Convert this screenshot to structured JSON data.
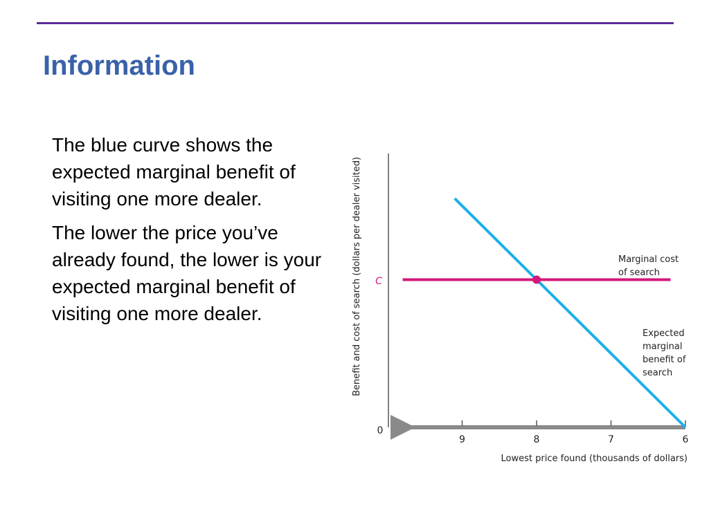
{
  "slide": {
    "title": "Information",
    "paragraphs": [
      "The blue curve shows the expected marginal benefit of visiting one more dealer.",
      "The lower the price you’ve already found, the lower is your expected marginal benefit of visiting one more dealer."
    ],
    "accent_color": "#5b2a9a",
    "title_color": "#3a62a8"
  },
  "chart_data": {
    "type": "line",
    "xlabel": "Lowest price found (thousands of dollars)",
    "ylabel": "Benefit and cost of search (dollars per dealer visited)",
    "x_axis_direction": "decreasing to the right",
    "x_ticks": [
      9,
      8,
      7,
      6
    ],
    "x_range": [
      10,
      6
    ],
    "y_origin_label": "0",
    "y_tick_label": "C",
    "series": [
      {
        "name": "Expected marginal benefit of search",
        "color": "#1bb0e8",
        "x": [
          9.1,
          6
        ],
        "y": [
          1.55,
          0
        ]
      },
      {
        "name": "Marginal cost of search",
        "color": "#d5167a",
        "x": [
          9.8,
          6.2
        ],
        "y": [
          1,
          1
        ]
      }
    ],
    "annotations": [
      {
        "text": "Marginal cost of search",
        "series": "Marginal cost of search"
      },
      {
        "text": "Expected marginal benefit of search",
        "series": "Expected marginal benefit of search"
      }
    ],
    "highlight_point": {
      "x": 8,
      "y": 1,
      "color": "#d5167a"
    },
    "axis_color": "#8a8a8a"
  }
}
